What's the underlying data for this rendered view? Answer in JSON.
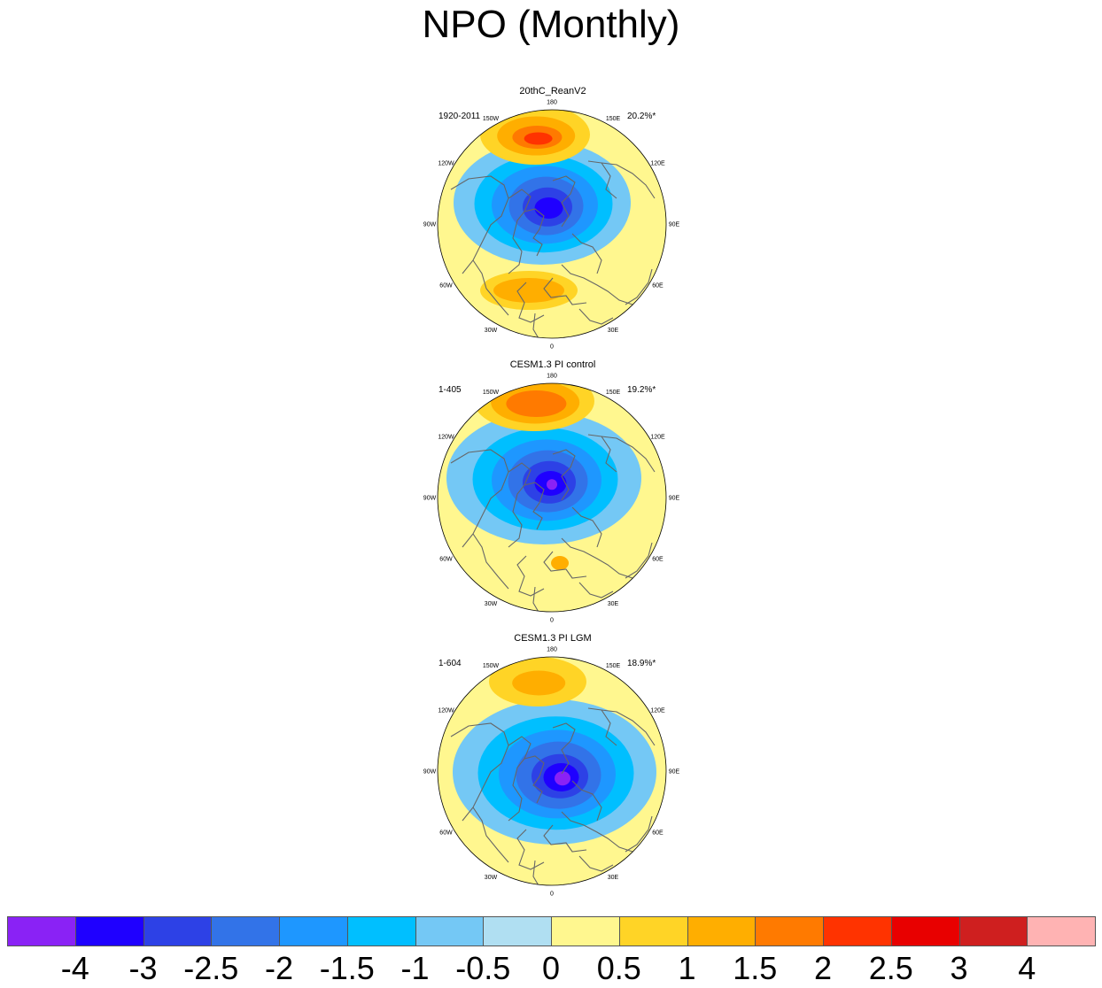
{
  "title": "NPO (Monthly)",
  "panels": [
    {
      "title": "20thC_ReanV2",
      "period": "1920-2011",
      "variance": "20.2%*",
      "pos_lobe": [
        {
          "level": "0.5",
          "rx": 62,
          "ry": 34
        },
        {
          "level": "1",
          "rx": 44,
          "ry": 22
        },
        {
          "level": "1.5",
          "rx": 28,
          "ry": 13
        },
        {
          "level": "2",
          "rx": 16,
          "ry": 7
        }
      ],
      "atl_lobe": [
        {
          "level": "0.5",
          "rx": 55,
          "ry": 22
        },
        {
          "level": "1",
          "rx": 40,
          "ry": 14
        }
      ],
      "neg_lobe": [
        {
          "level": "-0.5",
          "rx": 100,
          "ry": 70
        },
        {
          "level": "-1",
          "rx": 78,
          "ry": 55
        },
        {
          "level": "-1.5",
          "rx": 60,
          "ry": 44
        },
        {
          "level": "-2",
          "rx": 42,
          "ry": 33
        },
        {
          "level": "-2.5",
          "rx": 28,
          "ry": 22
        },
        {
          "level": "-3",
          "rx": 16,
          "ry": 12
        }
      ]
    },
    {
      "title": "CESM1.3 PI control",
      "period": "1-405",
      "variance": "19.2%*",
      "pos_lobe": [
        {
          "level": "0.5",
          "rx": 68,
          "ry": 34
        },
        {
          "level": "1",
          "rx": 50,
          "ry": 24
        },
        {
          "level": "1.5",
          "rx": 34,
          "ry": 15
        }
      ],
      "atl_lobe": [
        {
          "level": "1",
          "rx": 10,
          "ry": 8
        }
      ],
      "neg_lobe": [
        {
          "level": "-0.5",
          "rx": 110,
          "ry": 75
        },
        {
          "level": "-1",
          "rx": 82,
          "ry": 58
        },
        {
          "level": "-1.5",
          "rx": 62,
          "ry": 46
        },
        {
          "level": "-2",
          "rx": 45,
          "ry": 35
        },
        {
          "level": "-2.5",
          "rx": 30,
          "ry": 24
        },
        {
          "level": "-3",
          "rx": 18,
          "ry": 14
        },
        {
          "level": "-4",
          "rx": 6,
          "ry": 6
        }
      ]
    },
    {
      "title": "CESM1.3 PI LGM",
      "period": "1-604",
      "variance": "18.9%*",
      "pos_lobe": [
        {
          "level": "0.5",
          "rx": 55,
          "ry": 28
        },
        {
          "level": "1",
          "rx": 30,
          "ry": 14
        }
      ],
      "atl_lobe": [],
      "neg_lobe": [
        {
          "level": "-0.5",
          "rx": 115,
          "ry": 82
        },
        {
          "level": "-1",
          "rx": 88,
          "ry": 64
        },
        {
          "level": "-1.5",
          "rx": 66,
          "ry": 50
        },
        {
          "level": "-2",
          "rx": 48,
          "ry": 38
        },
        {
          "level": "-2.5",
          "rx": 32,
          "ry": 25
        },
        {
          "level": "-3",
          "rx": 20,
          "ry": 16
        },
        {
          "level": "-4",
          "rx": 9,
          "ry": 8
        }
      ]
    }
  ],
  "longitude_labels": [
    "180",
    "150E",
    "120E",
    "90E",
    "60E",
    "30E",
    "0",
    "30W",
    "60W",
    "90W",
    "120W",
    "150W"
  ],
  "colorbar": {
    "levels": [
      "-4",
      "-3",
      "-2.5",
      "-2",
      "-1.5",
      "-1",
      "-0.5",
      "0",
      "0.5",
      "1",
      "1.5",
      "2",
      "2.5",
      "3",
      "4"
    ],
    "colors": [
      "#8a22f5",
      "#1f00ff",
      "#2d41e6",
      "#3273e8",
      "#1e97ff",
      "#00bfff",
      "#74c8f5",
      "#b0dff2",
      "#fff78f",
      "#ffd426",
      "#ffae00",
      "#ff7a00",
      "#ff3300",
      "#e80000",
      "#cf1f1f",
      "#ffb3b3"
    ]
  },
  "level_colors": {
    "-4": "#8a22f5",
    "-3": "#1f00ff",
    "-2.5": "#2d41e6",
    "-2": "#3273e8",
    "-1.5": "#1e97ff",
    "-1": "#00bfff",
    "-0.5": "#74c8f5",
    "0.5": "#ffd426",
    "1": "#ffae00",
    "1.5": "#ff7a00",
    "2": "#ff3300",
    "background": "#fff78f",
    "neg_base": "#b0dff2",
    "coast": "#666666"
  }
}
